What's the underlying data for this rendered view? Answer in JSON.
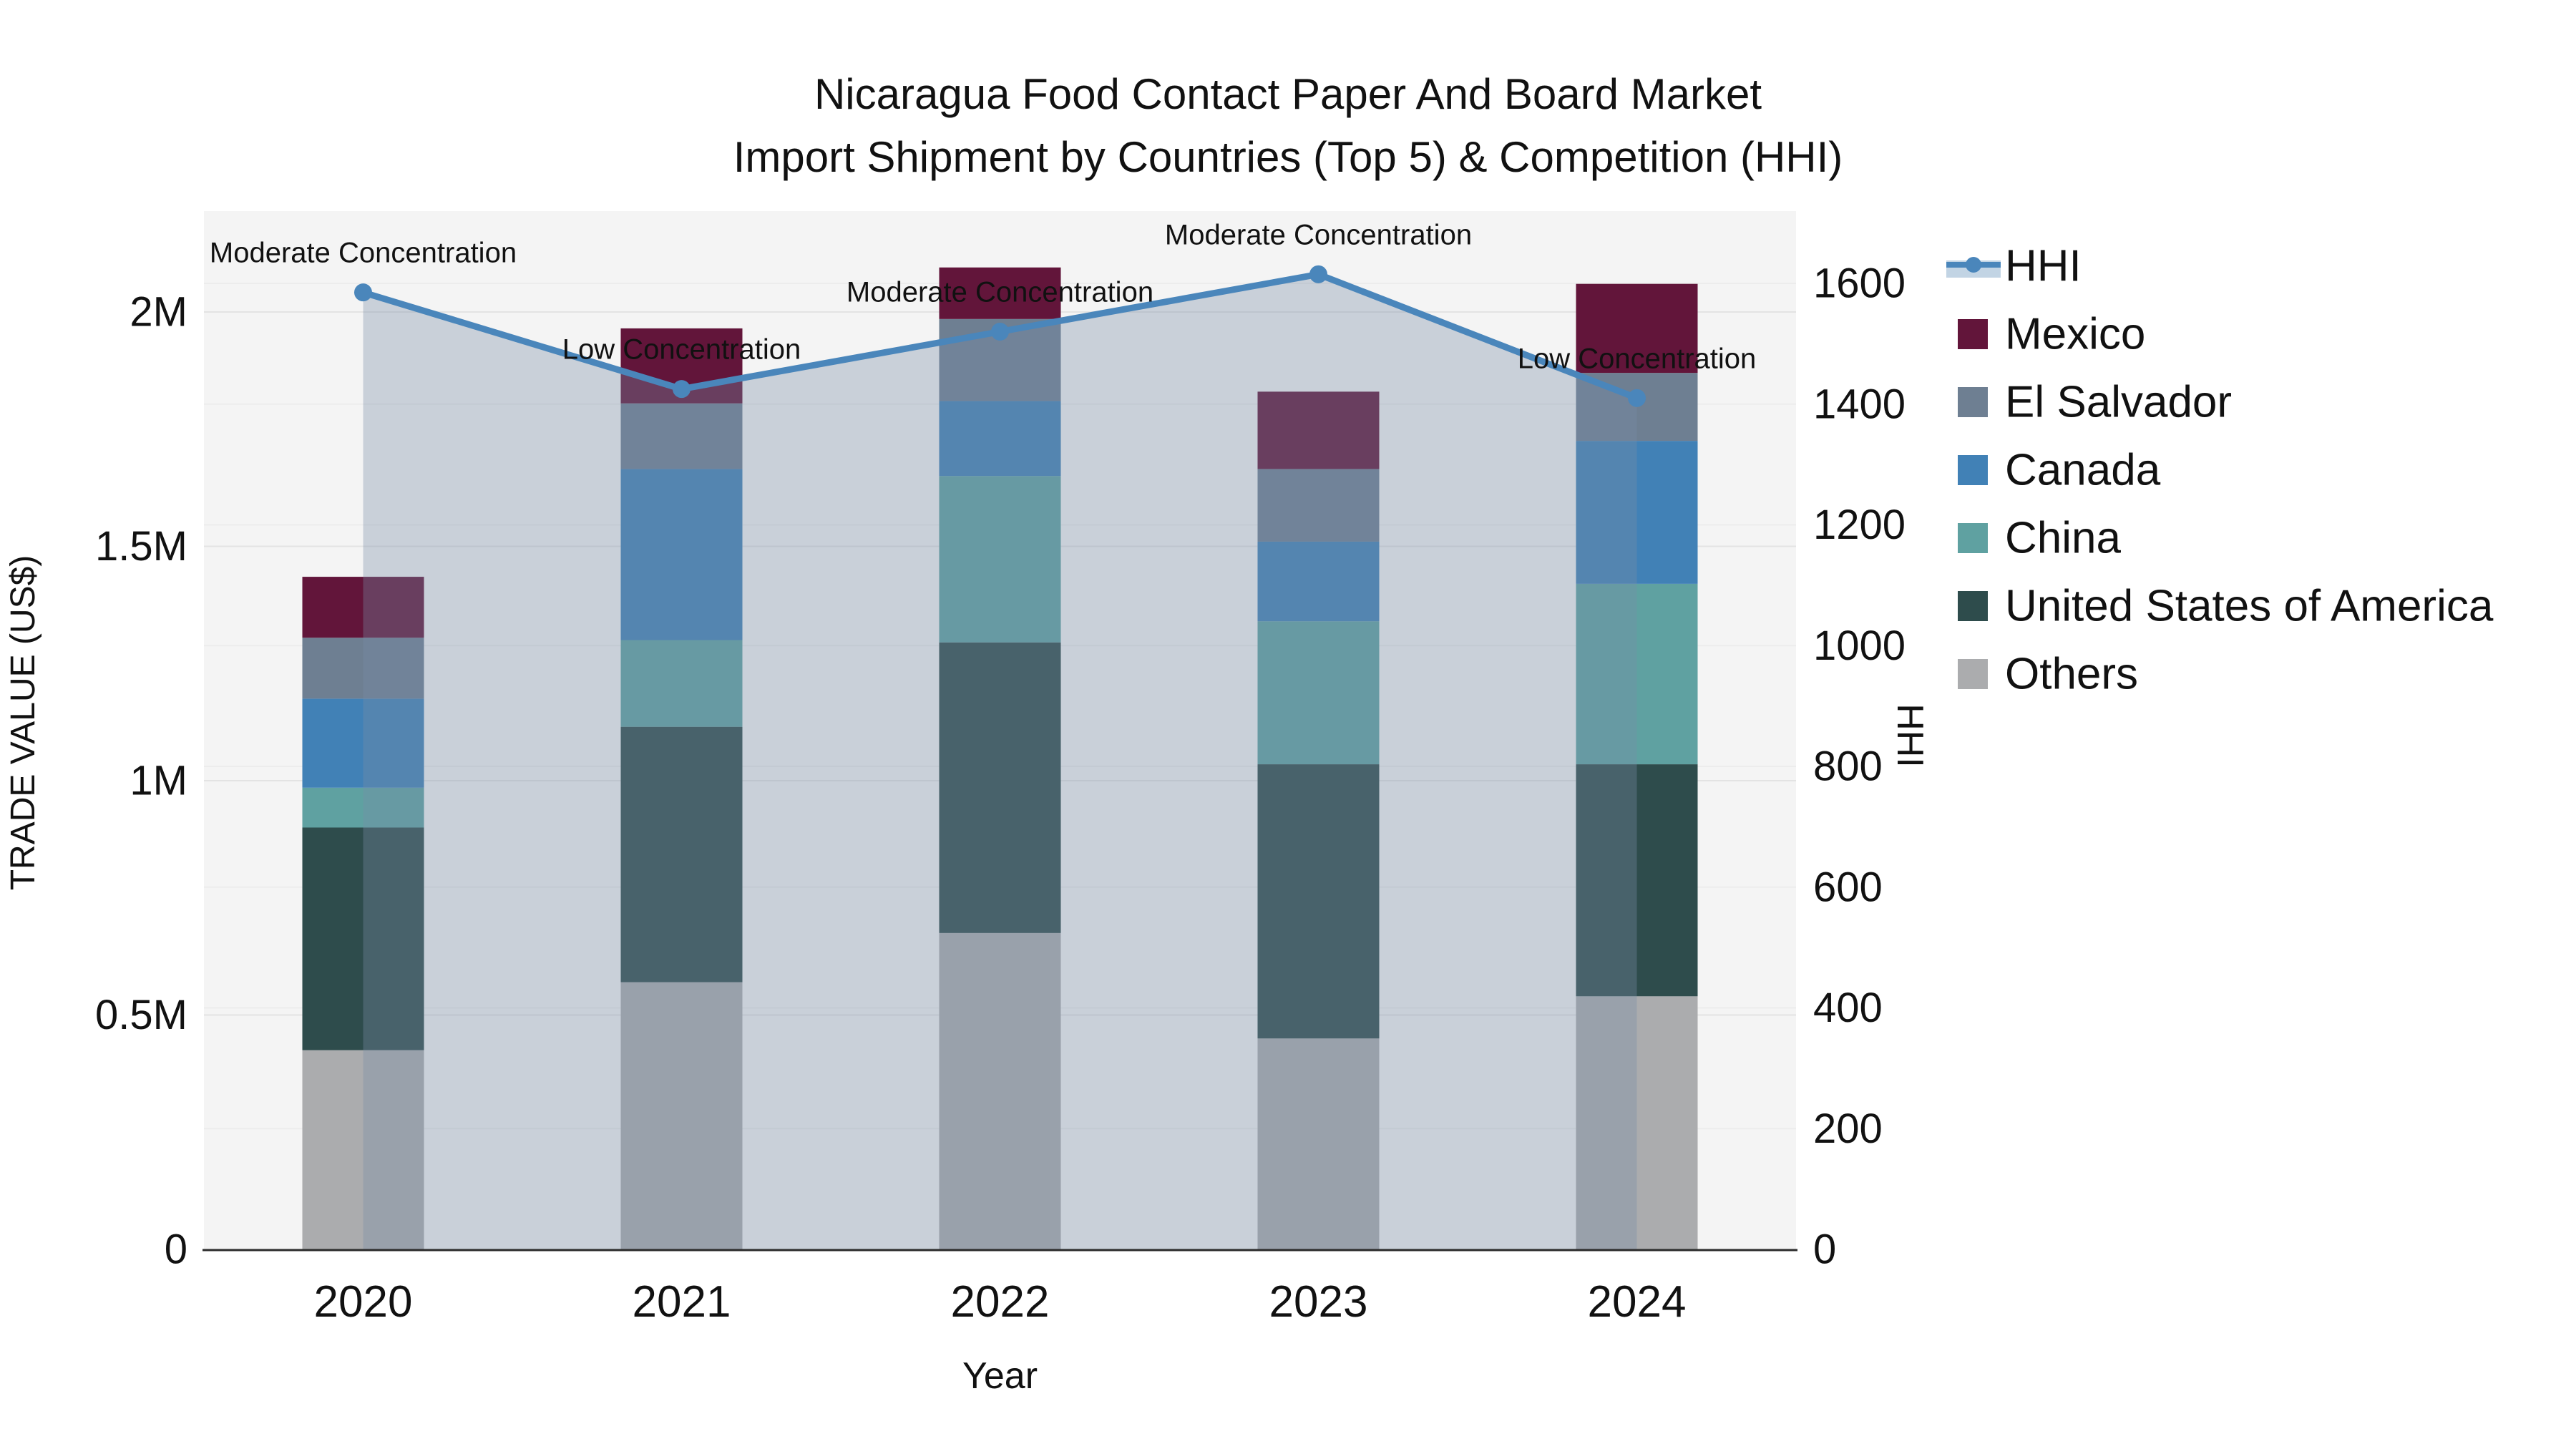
{
  "chart_data": {
    "type": "bar",
    "title_line1": "Nicaragua Food Contact Paper And Board Market",
    "title_line2": "Import Shipment by Countries (Top 5) & Competition (HHI)",
    "xlabel": "Year",
    "ylabel_left": "TRADE VALUE (US$)",
    "ylabel_right": "HHI",
    "categories": [
      "2020",
      "2021",
      "2022",
      "2023",
      "2024"
    ],
    "y_left_ticks": [
      {
        "value": 0,
        "label": "0"
      },
      {
        "value": 500000,
        "label": "0.5M"
      },
      {
        "value": 1000000,
        "label": "1M"
      },
      {
        "value": 1500000,
        "label": "1.5M"
      },
      {
        "value": 2000000,
        "label": "2M"
      }
    ],
    "y_left_max": 2000000,
    "y_right_ticks": [
      0,
      200,
      400,
      600,
      800,
      1000,
      1200,
      1400,
      1600
    ],
    "y_right_max": 1600,
    "grid": true,
    "legend_position": "right",
    "series": [
      {
        "name": "Others",
        "color": "#abacae",
        "values": [
          425000,
          570000,
          675000,
          450000,
          540000
        ]
      },
      {
        "name": "United States of America",
        "color": "#2e4c4c",
        "values": [
          475000,
          545000,
          620000,
          585000,
          495000
        ]
      },
      {
        "name": "China",
        "color": "#5fa1a1",
        "values": [
          85000,
          185000,
          355000,
          305000,
          385000
        ]
      },
      {
        "name": "Canada",
        "color": "#4181b6",
        "values": [
          190000,
          365000,
          160000,
          170000,
          305000
        ]
      },
      {
        "name": "El Salvador",
        "color": "#6e7f92",
        "values": [
          130000,
          140000,
          175000,
          155000,
          145000
        ]
      },
      {
        "name": "Mexico",
        "color": "#62153a",
        "values": [
          130000,
          160000,
          110000,
          165000,
          190000
        ]
      }
    ],
    "bar_totals": [
      1435000,
      1965000,
      2095000,
      1830000,
      2060000
    ],
    "hhi_line": {
      "name": "HHI",
      "color": "#4a86bb",
      "area_fill": "rgba(120,140,165,0.35)",
      "legend_band_fill": "#c2d4e4",
      "values": [
        1585,
        1425,
        1520,
        1615,
        1410
      ]
    },
    "annotations": [
      {
        "category": "2020",
        "text": "Moderate Concentration"
      },
      {
        "category": "2021",
        "text": "Low Concentration"
      },
      {
        "category": "2022",
        "text": "Moderate Concentration"
      },
      {
        "category": "2023",
        "text": "Moderate Concentration"
      },
      {
        "category": "2024",
        "text": "Low Concentration"
      }
    ],
    "legend_order": [
      "HHI",
      "Mexico",
      "El Salvador",
      "Canada",
      "China",
      "United States of America",
      "Others"
    ],
    "plot_bg": "#f4f4f4",
    "gridline_color_left": "#e3e3e3",
    "gridline_color_right": "#ececec",
    "axis_line_color": "#2b2b2b",
    "text_color": "#111111"
  }
}
